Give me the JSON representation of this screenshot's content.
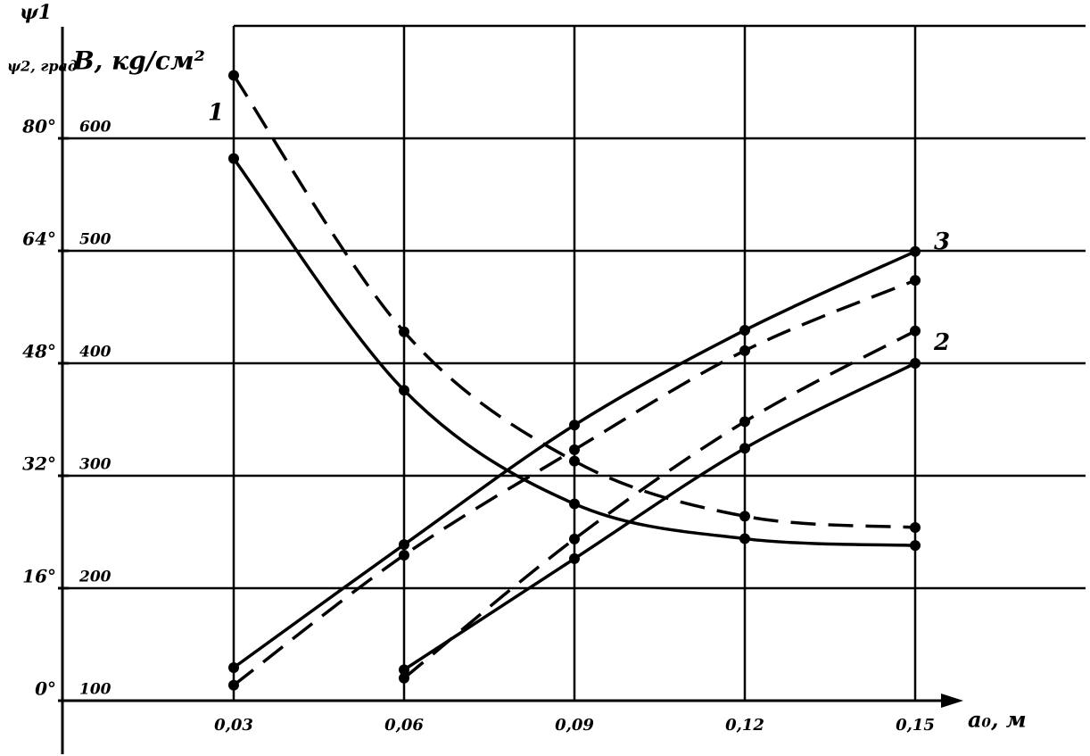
{
  "chart_data": {
    "type": "line",
    "y_label": "ψ1",
    "y_sublabel": "ψ2, град",
    "y2_label": "B, кg/см²",
    "x_label": "a₀, м",
    "x": [
      0.03,
      0.06,
      0.09,
      0.12,
      0.15
    ],
    "xlim": [
      0,
      0.18
    ],
    "xticks": [
      {
        "value": 0.03,
        "label": "0,03"
      },
      {
        "value": 0.06,
        "label": "0,06"
      },
      {
        "value": 0.09,
        "label": "0,09"
      },
      {
        "value": 0.12,
        "label": "0,12"
      },
      {
        "value": 0.15,
        "label": "0,15"
      }
    ],
    "ylim": [
      0,
      96
    ],
    "yticks": [
      {
        "value": 0,
        "label": "0°"
      },
      {
        "value": 16,
        "label": "16°"
      },
      {
        "value": 32,
        "label": "32°"
      },
      {
        "value": 48,
        "label": "48°"
      },
      {
        "value": 64,
        "label": "64°"
      },
      {
        "value": 80,
        "label": "80°"
      }
    ],
    "y2lim": [
      100,
      700
    ],
    "y2ticks": [
      100,
      200,
      300,
      400,
      500,
      600
    ],
    "grid": true,
    "series": [
      {
        "name": "1",
        "color": "#000000",
        "style": "solid",
        "axis": "y2",
        "values": [
          582,
          376,
          275,
          244,
          238
        ]
      },
      {
        "color": "#000000",
        "style": "dashed",
        "axis": "y2",
        "values": [
          656,
          428,
          313,
          264,
          254
        ]
      },
      {
        "name": "3",
        "color": "#000000",
        "style": "solid",
        "values": [
          4.7,
          22.2,
          39.2,
          52.7,
          63.9
        ]
      },
      {
        "color": "#000000",
        "style": "dashed",
        "values": [
          2.2,
          20.7,
          35.7,
          49.8,
          59.8
        ]
      },
      {
        "name": "2",
        "color": "#000000",
        "style": "solid",
        "values": [
          null,
          4.4,
          20.2,
          35.9,
          48.0
        ]
      },
      {
        "color": "#000000",
        "style": "dashed",
        "values": [
          null,
          3.2,
          23.0,
          39.7,
          52.6
        ]
      }
    ]
  }
}
